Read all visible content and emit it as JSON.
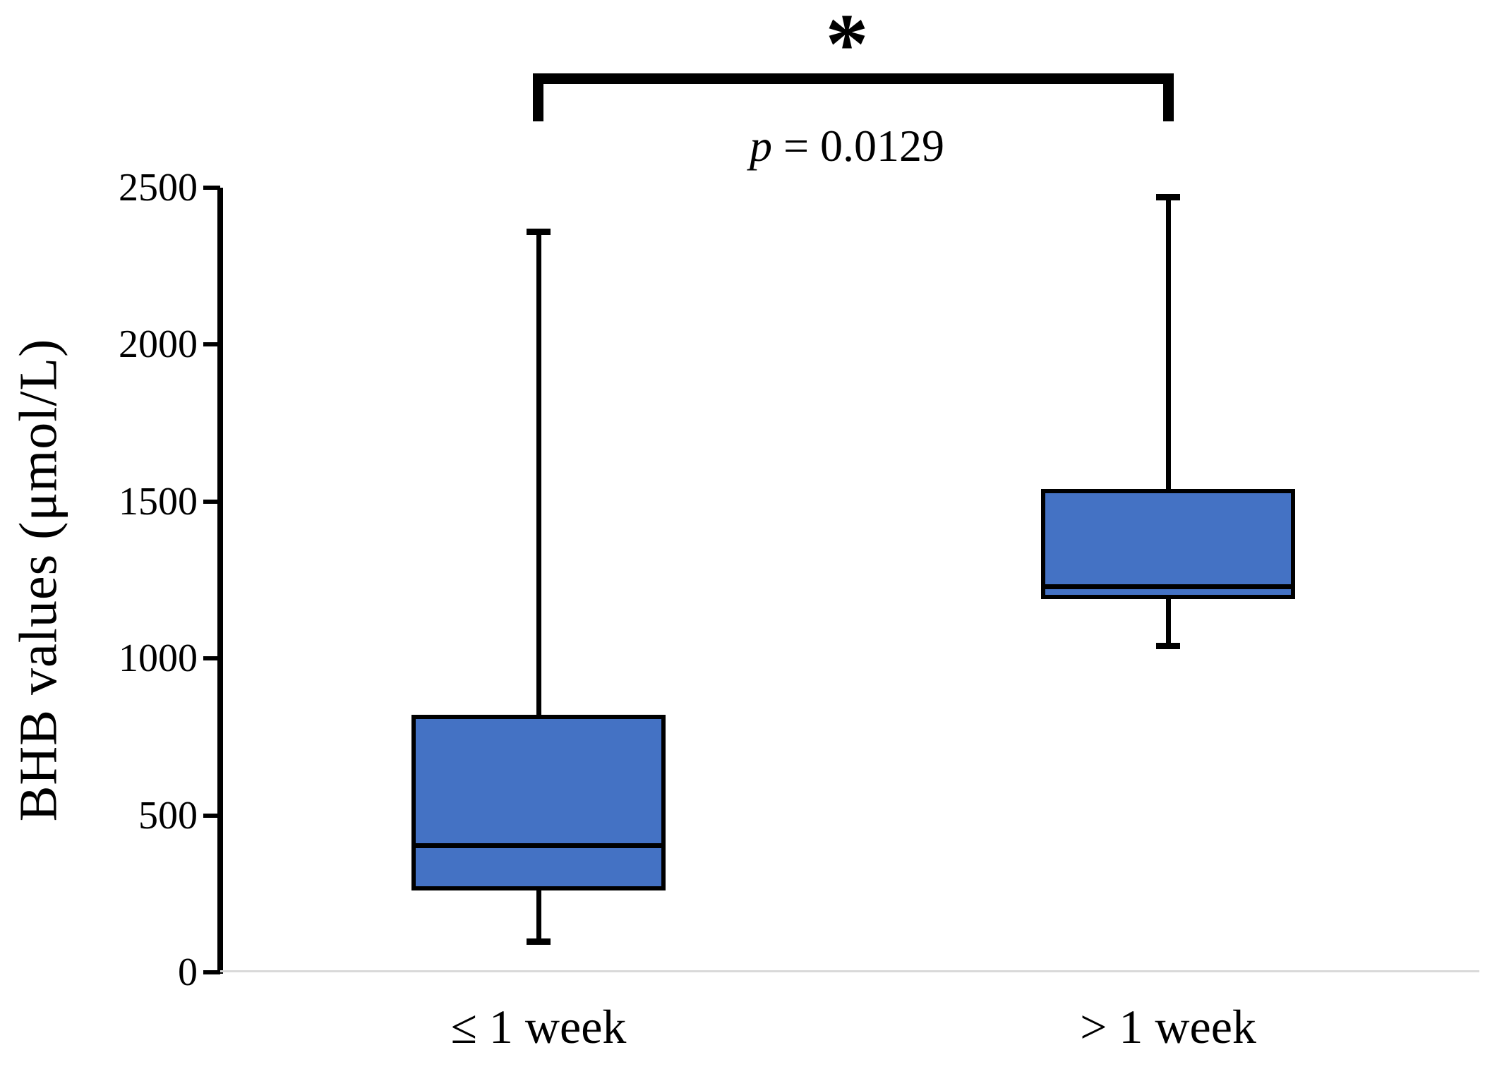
{
  "figure": {
    "background": "#ffffff"
  },
  "chart_data": {
    "type": "box",
    "title": "",
    "ylabel": "BHB values (μmol/L)",
    "xlabel": "",
    "ylim": [
      0,
      2500
    ],
    "yticks": [
      "0",
      "500",
      "1000",
      "1500",
      "2000",
      "2500"
    ],
    "ytick_values": [
      0,
      500,
      1000,
      1500,
      2000,
      2500
    ],
    "categories": [
      "≤ 1 week",
      "> 1 week"
    ],
    "boxes": [
      {
        "category": "≤ 1 week",
        "min": 100,
        "q1": 260,
        "median": 405,
        "q3": 820,
        "max": 2360
      },
      {
        "category": "> 1 week",
        "min": 1040,
        "q1": 1190,
        "median": 1230,
        "q3": 1540,
        "max": 2470
      }
    ],
    "grid": false,
    "legend": false,
    "colors": {
      "box_fill": "#4472C4",
      "box_border": "#000000",
      "axis": "#000000",
      "baseline": "#d9d9d9"
    },
    "annotations": {
      "significance": "*",
      "p_var": "p",
      "p_value_text": " = 0.0129",
      "bracket_between": [
        "≤ 1 week",
        "> 1 week"
      ]
    }
  }
}
